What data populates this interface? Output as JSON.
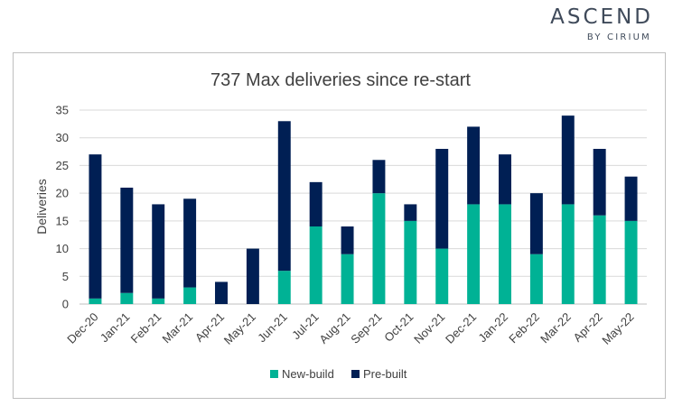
{
  "branding": {
    "logo_main": "ASCEND",
    "logo_sub": "BY CIRIUM"
  },
  "chart_data": {
    "type": "bar",
    "stacked": true,
    "title": "737 Max deliveries since re-start",
    "xlabel": "",
    "ylabel": "Deliveries",
    "ylim": [
      0,
      35
    ],
    "yticks": [
      0,
      5,
      10,
      15,
      20,
      25,
      30,
      35
    ],
    "grid": true,
    "legend_position": "bottom",
    "categories": [
      "Dec-20",
      "Jan-21",
      "Feb-21",
      "Mar-21",
      "Apr-21",
      "May-21",
      "Jun-21",
      "Jul-21",
      "Aug-21",
      "Sep-21",
      "Oct-21",
      "Nov-21",
      "Dec-21",
      "Jan-22",
      "Feb-22",
      "Mar-22",
      "Apr-22",
      "May-22"
    ],
    "series": [
      {
        "name": "New-build",
        "color": "#00b295",
        "values": [
          1,
          2,
          1,
          3,
          0,
          0,
          6,
          14,
          9,
          20,
          15,
          10,
          18,
          18,
          9,
          18,
          16,
          15
        ]
      },
      {
        "name": "Pre-built",
        "color": "#001f54",
        "values": [
          26,
          19,
          17,
          16,
          4,
          10,
          27,
          8,
          5,
          6,
          3,
          18,
          14,
          9,
          11,
          16,
          12,
          8
        ]
      }
    ]
  }
}
